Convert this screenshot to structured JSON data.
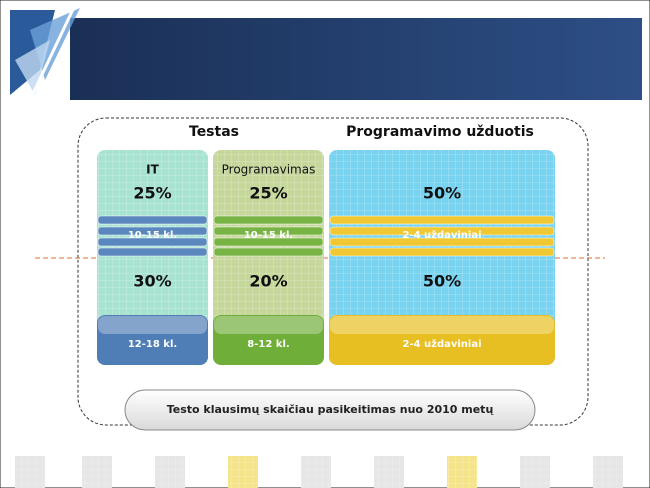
{
  "header": {
    "groups": [
      "Testas",
      "Programavimo užduotis"
    ]
  },
  "columns": [
    {
      "title": "IT",
      "top_share": "25%",
      "top_band": "10-15 kl.",
      "bottom_share": "30%",
      "bottom_band": "12-18 kl."
    },
    {
      "title": "Programavimas",
      "top_share": "25%",
      "top_band": "10-15 kl.",
      "bottom_share": "20%",
      "bottom_band": "8-12 kl."
    },
    {
      "top_share": "50%",
      "top_band": "2-4 uždaviniai",
      "bottom_share": "50%",
      "bottom_band": "2-4 uždaviniai"
    }
  ],
  "footer": "Testo klausimų skaičiau pasikeitimas nuo 2010 metų"
}
